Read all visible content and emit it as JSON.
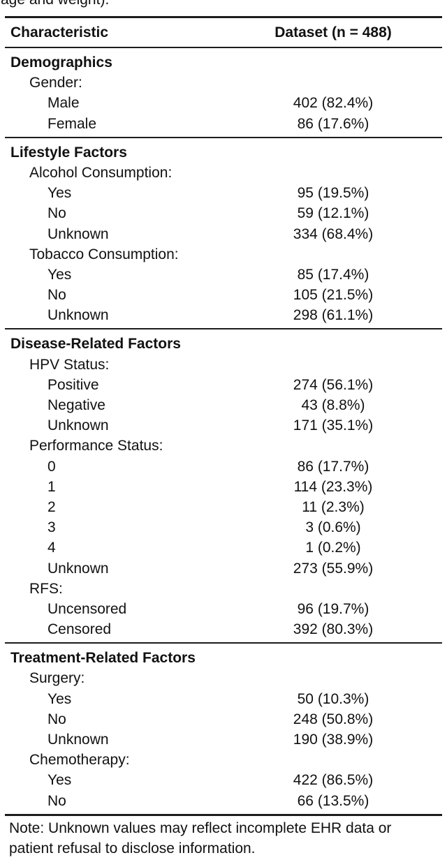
{
  "top_cropped_text": "age and weight).",
  "table": {
    "header": {
      "characteristic": "Characteristic",
      "dataset": "Dataset (n = 488)"
    },
    "sections": [
      {
        "title": "Demographics",
        "rows": [
          {
            "label": "Gender:",
            "indent": 1,
            "value": ""
          },
          {
            "label": "Male",
            "indent": 2,
            "value": "402 (82.4%)"
          },
          {
            "label": "Female",
            "indent": 2,
            "value": "86 (17.6%)"
          }
        ]
      },
      {
        "title": "Lifestyle Factors",
        "rows": [
          {
            "label": "Alcohol Consumption:",
            "indent": 1,
            "value": ""
          },
          {
            "label": "Yes",
            "indent": 2,
            "value": "95 (19.5%)"
          },
          {
            "label": "No",
            "indent": 2,
            "value": "59 (12.1%)"
          },
          {
            "label": "Unknown",
            "indent": 2,
            "value": "334 (68.4%)"
          },
          {
            "label": "Tobacco Consumption:",
            "indent": 1,
            "value": ""
          },
          {
            "label": "Yes",
            "indent": 2,
            "value": "85 (17.4%)"
          },
          {
            "label": "No",
            "indent": 2,
            "value": "105 (21.5%)"
          },
          {
            "label": "Unknown",
            "indent": 2,
            "value": "298 (61.1%)"
          }
        ]
      },
      {
        "title": "Disease-Related Factors",
        "rows": [
          {
            "label": "HPV Status:",
            "indent": 1,
            "value": ""
          },
          {
            "label": "Positive",
            "indent": 2,
            "value": "274 (56.1%)"
          },
          {
            "label": "Negative",
            "indent": 2,
            "value": "43 (8.8%)"
          },
          {
            "label": "Unknown",
            "indent": 2,
            "value": "171 (35.1%)"
          },
          {
            "label": "Performance Status:",
            "indent": 1,
            "value": ""
          },
          {
            "label": "0",
            "indent": 2,
            "value": "86 (17.7%)"
          },
          {
            "label": "1",
            "indent": 2,
            "value": "114 (23.3%)"
          },
          {
            "label": "2",
            "indent": 2,
            "value": "11 (2.3%)"
          },
          {
            "label": "3",
            "indent": 2,
            "value": "3 (0.6%)"
          },
          {
            "label": "4",
            "indent": 2,
            "value": "1 (0.2%)"
          },
          {
            "label": "Unknown",
            "indent": 2,
            "value": "273 (55.9%)"
          },
          {
            "label": "RFS:",
            "indent": 1,
            "value": ""
          },
          {
            "label": "Uncensored",
            "indent": 2,
            "value": "96 (19.7%)"
          },
          {
            "label": "Censored",
            "indent": 2,
            "value": "392 (80.3%)"
          }
        ]
      },
      {
        "title": "Treatment-Related Factors",
        "rows": [
          {
            "label": "Surgery:",
            "indent": 1,
            "value": ""
          },
          {
            "label": "Yes",
            "indent": 2,
            "value": "50 (10.3%)"
          },
          {
            "label": "No",
            "indent": 2,
            "value": "248 (50.8%)"
          },
          {
            "label": "Unknown",
            "indent": 2,
            "value": "190 (38.9%)"
          },
          {
            "label": "Chemotherapy:",
            "indent": 1,
            "value": ""
          },
          {
            "label": "Yes",
            "indent": 2,
            "value": "422 (86.5%)"
          },
          {
            "label": "No",
            "indent": 2,
            "value": "66 (13.5%)"
          }
        ]
      }
    ]
  },
  "note": {
    "line1": "Note: Unknown values may reflect incomplete EHR data or",
    "line2": "patient refusal to disclose information."
  },
  "colors": {
    "text": "#111111",
    "rule": "#1c1c1c",
    "background": "#ffffff"
  }
}
